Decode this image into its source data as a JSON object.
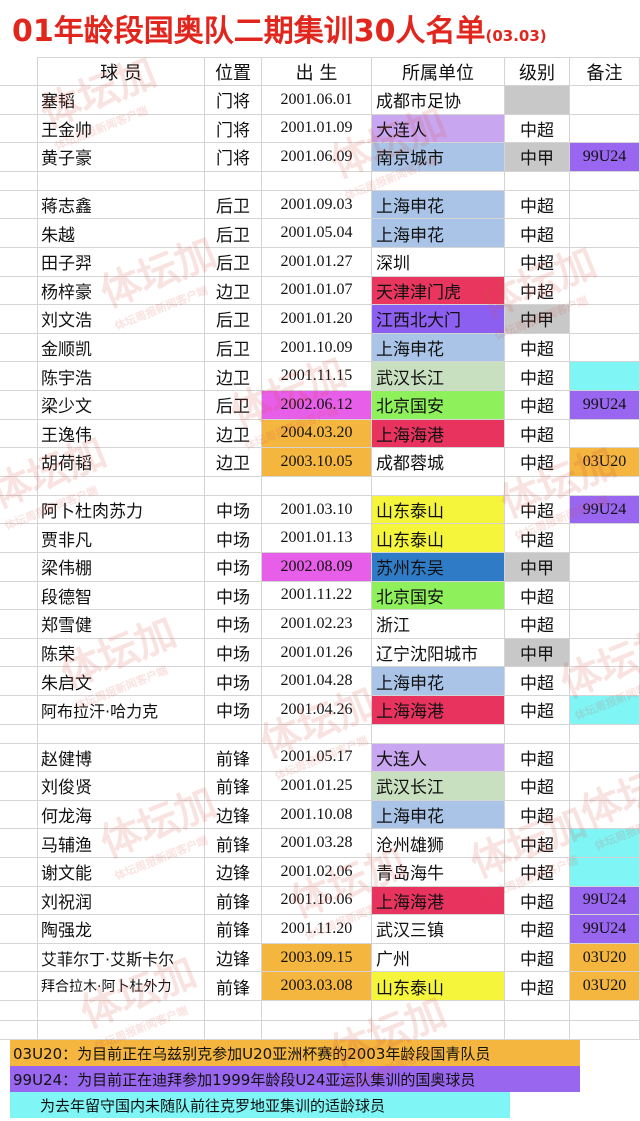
{
  "header": {
    "title": "01年龄段国奥队二期集训30人名单",
    "date": "(03.03)"
  },
  "table": {
    "columns": [
      "球 员",
      "位置",
      "出 生",
      "所属单位",
      "级别",
      "备注"
    ],
    "groups": [
      {
        "rows": [
          {
            "name": "塞韬",
            "position": "门将",
            "birth": "2001.06.01",
            "club": "成都市足协",
            "fills": {
              "level": "#c8c8c8"
            }
          },
          {
            "name": "王金帅",
            "position": "门将",
            "birth": "2001.01.09",
            "club": "大连人",
            "level": "中超",
            "fills": {
              "club": "#c9a6f0"
            }
          },
          {
            "name": "黄子豪",
            "position": "门将",
            "birth": "2001.06.09",
            "club": "南京城市",
            "level": "中甲",
            "note": "99U24",
            "fills": {
              "club": "#a9c4e6",
              "level": "#c8c8c8",
              "note": "#9966f0"
            }
          }
        ]
      },
      {
        "rows": [
          {
            "name": "蒋志鑫",
            "position": "后卫",
            "birth": "2001.09.03",
            "club": "上海申花",
            "level": "中超",
            "fills": {
              "club": "#a9c4e6"
            }
          },
          {
            "name": "朱越",
            "position": "后卫",
            "birth": "2001.05.04",
            "club": "上海申花",
            "level": "中超",
            "fills": {
              "club": "#a9c4e6"
            }
          },
          {
            "name": "田子羿",
            "position": "后卫",
            "birth": "2001.01.27",
            "club": "深圳",
            "level": "中超"
          },
          {
            "name": "杨梓豪",
            "position": "边卫",
            "birth": "2001.01.07",
            "club": "天津津门虎",
            "level": "中超",
            "fills": {
              "club": "#e8365f"
            }
          },
          {
            "name": "刘文浩",
            "position": "后卫",
            "birth": "2001.01.20",
            "club": "江西北大门",
            "level": "中甲",
            "fills": {
              "club": "#8d5ff0",
              "level": "#c8c8c8"
            }
          },
          {
            "name": "金顺凯",
            "position": "后卫",
            "birth": "2001.10.09",
            "club": "上海申花",
            "level": "中超",
            "fills": {
              "club": "#a9c4e6"
            }
          },
          {
            "name": "陈宇浩",
            "position": "边卫",
            "birth": "2001.11.15",
            "club": "武汉长江",
            "level": "中超",
            "fills": {
              "club": "#c9e0c0",
              "note": "#7ff5f5"
            }
          },
          {
            "name": "梁少文",
            "position": "后卫",
            "birth": "2002.06.12",
            "club": "北京国安",
            "level": "中超",
            "note": "99U24",
            "fills": {
              "birth": "#e75ee8",
              "club": "#8ef05a",
              "note": "#9966f0"
            }
          },
          {
            "name": "王逸伟",
            "position": "边卫",
            "birth": "2004.03.20",
            "club": "上海海港",
            "level": "中超",
            "fills": {
              "birth": "#f4b63f",
              "club": "#e8335f"
            }
          },
          {
            "name": "胡荷韬",
            "position": "边卫",
            "birth": "2003.10.05",
            "club": "成都蓉城",
            "level": "中超",
            "note": "03U20",
            "fills": {
              "birth": "#f4b63f",
              "note": "#f4b63f"
            }
          }
        ]
      },
      {
        "rows": [
          {
            "name": "阿卜杜肉苏力",
            "position": "中场",
            "birth": "2001.03.10",
            "club": "山东泰山",
            "level": "中超",
            "note": "99U24",
            "fills": {
              "club": "#f5f53c",
              "note": "#9966f0"
            }
          },
          {
            "name": "贾非凡",
            "position": "中场",
            "birth": "2001.01.13",
            "club": "山东泰山",
            "level": "中超",
            "fills": {
              "club": "#f5f53c"
            }
          },
          {
            "name": "梁伟棚",
            "position": "中场",
            "birth": "2002.08.09",
            "club": "苏州东吴",
            "level": "中甲",
            "fills": {
              "birth": "#e75ee8",
              "club": "#2f7bc6",
              "level": "#c8c8c8"
            }
          },
          {
            "name": "段德智",
            "position": "中场",
            "birth": "2001.11.22",
            "club": "北京国安",
            "level": "中超",
            "fills": {
              "club": "#8ef05a"
            }
          },
          {
            "name": "郑雪健",
            "position": "中场",
            "birth": "2001.02.23",
            "club": "浙江",
            "level": "中超"
          },
          {
            "name": "陈荣",
            "position": "中场",
            "birth": "2001.01.26",
            "club": "辽宁沈阳城市",
            "level": "中甲",
            "fills": {
              "level": "#c8c8c8"
            }
          },
          {
            "name": "朱启文",
            "position": "中场",
            "birth": "2001.04.28",
            "club": "上海申花",
            "level": "中超",
            "fills": {
              "club": "#a9c4e6"
            }
          },
          {
            "name": "阿布拉汗·哈力克",
            "position": "中场",
            "birth": "2001.04.26",
            "club": "上海海港",
            "level": "中超",
            "fills": {
              "club": "#e8335f",
              "note": "#7ff5f5"
            }
          }
        ]
      },
      {
        "rows": [
          {
            "name": "赵健博",
            "position": "前锋",
            "birth": "2001.05.17",
            "club": "大连人",
            "level": "中超",
            "fills": {
              "club": "#c9a6f0"
            }
          },
          {
            "name": "刘俊贤",
            "position": "前锋",
            "birth": "2001.01.25",
            "club": "武汉长江",
            "level": "中超",
            "fills": {
              "club": "#c9e0c0"
            }
          },
          {
            "name": "何龙海",
            "position": "边锋",
            "birth": "2001.10.08",
            "club": "上海申花",
            "level": "中超",
            "fills": {
              "club": "#a9c4e6"
            }
          },
          {
            "name": "马辅渔",
            "position": "前锋",
            "birth": "2001.03.28",
            "club": "沧州雄狮",
            "level": "中超",
            "fills": {
              "note": "#7ff5f5"
            }
          },
          {
            "name": "谢文能",
            "position": "边锋",
            "birth": "2001.02.06",
            "club": "青岛海牛",
            "level": "中超",
            "fills": {
              "note": "#7ff5f5"
            }
          },
          {
            "name": "刘祝润",
            "position": "前锋",
            "birth": "2001.10.06",
            "club": "上海海港",
            "level": "中超",
            "note": "99U24",
            "fills": {
              "club": "#e8335f",
              "note": "#9966f0"
            }
          },
          {
            "name": "陶强龙",
            "position": "前锋",
            "birth": "2001.11.20",
            "club": "武汉三镇",
            "level": "中超",
            "note": "99U24",
            "fills": {
              "note": "#9966f0"
            }
          },
          {
            "name": "艾菲尔丁·艾斯卡尔",
            "position": "边锋",
            "birth": "2003.09.15",
            "club": "广州",
            "level": "中超",
            "note": "03U20",
            "fills": {
              "birth": "#f4b63f",
              "note": "#f4b63f"
            }
          },
          {
            "name": "拜合拉木·阿卜杜外力",
            "position": "前锋",
            "birth": "2003.03.08",
            "club": "山东泰山",
            "level": "中超",
            "note": "03U20",
            "fills": {
              "birth": "#f4b63f",
              "club": "#f5f53c",
              "note": "#f4b63f"
            }
          }
        ]
      }
    ]
  },
  "footnotes": [
    {
      "text": "03U20：为目前正在乌兹别克参加U20亚洲杯赛的2003年龄段国青队员",
      "fill": "#f4b63f"
    },
    {
      "text": "99U24：为目前正在迪拜参加1999年龄段U24亚运队集训的国奥球员",
      "fill": "#9966f0"
    },
    {
      "text": "为去年留守国内未随队前往克罗地亚集训的适龄球员",
      "fill": "#7ff5f5"
    }
  ],
  "watermark": {
    "brand": "体坛加",
    "tagline": "体坛周报新闻客户端"
  }
}
